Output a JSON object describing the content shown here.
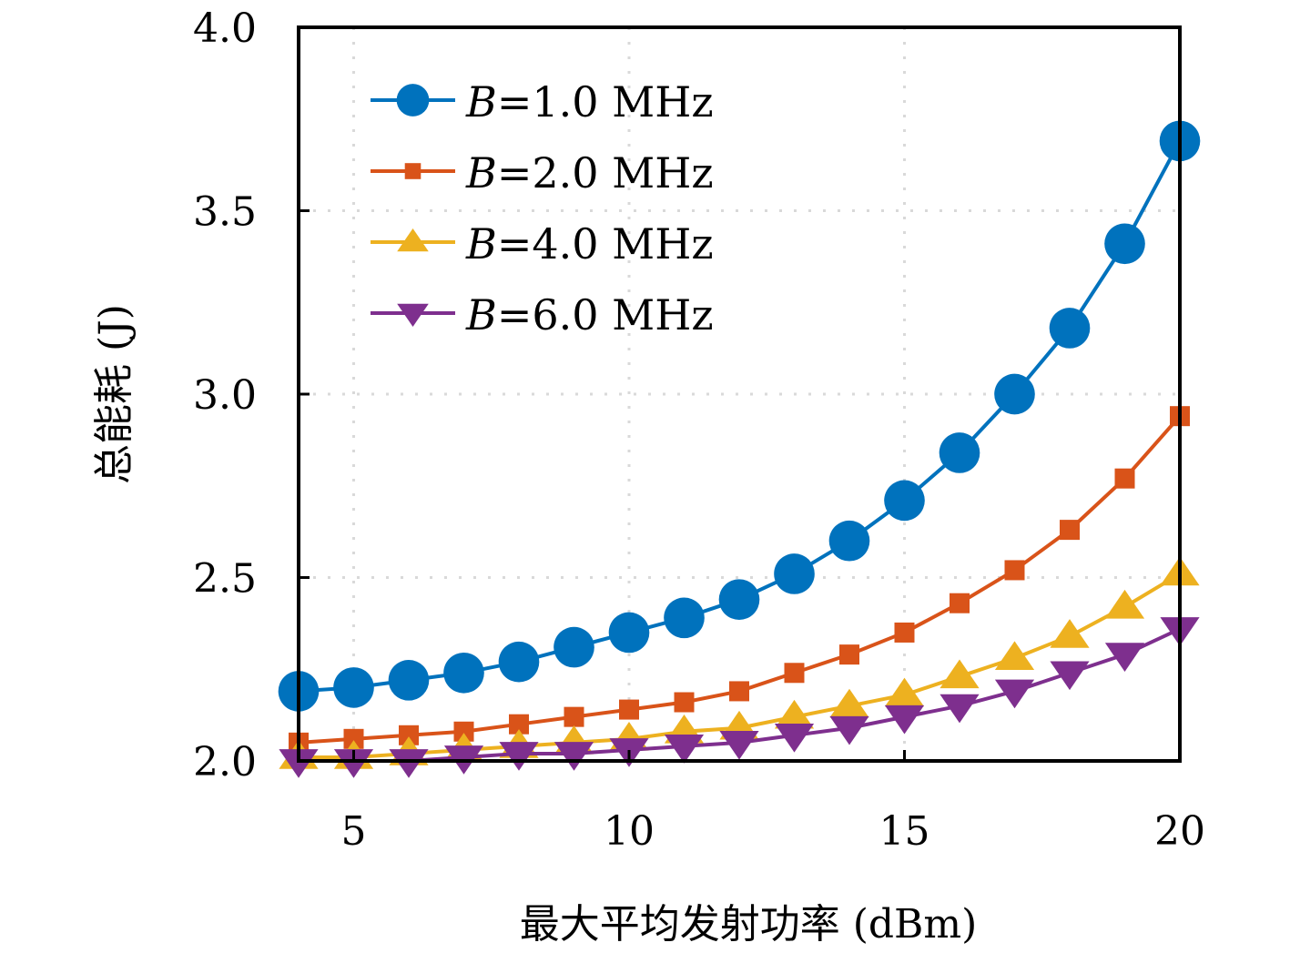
{
  "chart_data": {
    "type": "line",
    "title": "",
    "xlabel": "最大平均发射功率 (dBm)",
    "ylabel": "总能耗 (J)",
    "xlim": [
      4,
      20
    ],
    "ylim": [
      2.0,
      4.0
    ],
    "xticks": [
      5,
      10,
      15,
      20
    ],
    "xtick_labels": [
      "5",
      "10",
      "15",
      "20"
    ],
    "yticks": [
      2.0,
      2.5,
      3.0,
      3.5,
      4.0
    ],
    "ytick_labels": [
      "2.0",
      "2.5",
      "3.0",
      "3.5",
      "4.0"
    ],
    "grid": true,
    "grid_style": "dotted",
    "legend_position": "top-left",
    "x": [
      4,
      5,
      6,
      7,
      8,
      9,
      10,
      11,
      12,
      13,
      14,
      15,
      16,
      17,
      18,
      19,
      20
    ],
    "series": [
      {
        "name": "B=1.0 MHz",
        "label_var": "B",
        "label_rest": "=1.0 MHz",
        "color": "#0072BD",
        "marker": "circle",
        "values": [
          2.19,
          2.2,
          2.22,
          2.24,
          2.27,
          2.31,
          2.35,
          2.39,
          2.44,
          2.51,
          2.6,
          2.71,
          2.84,
          3.0,
          3.18,
          3.41,
          3.69
        ]
      },
      {
        "name": "B=2.0 MHz",
        "label_var": "B",
        "label_rest": "=2.0 MHz",
        "color": "#D95319",
        "marker": "square",
        "values": [
          2.05,
          2.06,
          2.07,
          2.08,
          2.1,
          2.12,
          2.14,
          2.16,
          2.19,
          2.24,
          2.29,
          2.35,
          2.43,
          2.52,
          2.63,
          2.77,
          2.94
        ]
      },
      {
        "name": "B=4.0 MHz",
        "label_var": "B",
        "label_rest": "=4.0 MHz",
        "color": "#EDB120",
        "marker": "triangle-up",
        "values": [
          2.01,
          2.01,
          2.02,
          2.03,
          2.04,
          2.05,
          2.06,
          2.08,
          2.09,
          2.12,
          2.15,
          2.18,
          2.23,
          2.28,
          2.34,
          2.42,
          2.51
        ]
      },
      {
        "name": "B=6.0 MHz",
        "label_var": "B",
        "label_rest": "=6.0 MHz",
        "color": "#7E2F8E",
        "marker": "triangle-down",
        "values": [
          2.0,
          2.0,
          2.0,
          2.01,
          2.02,
          2.02,
          2.03,
          2.04,
          2.05,
          2.07,
          2.09,
          2.12,
          2.15,
          2.19,
          2.24,
          2.29,
          2.36
        ]
      }
    ]
  }
}
